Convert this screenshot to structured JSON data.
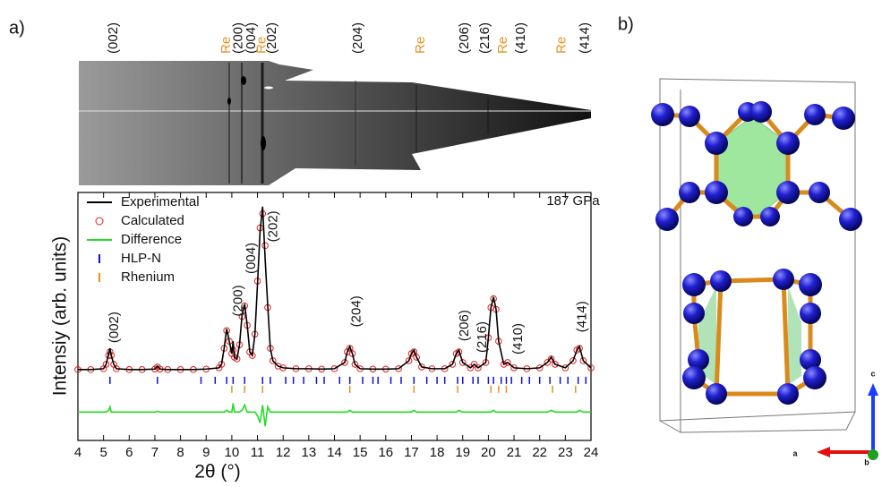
{
  "panel_labels": [
    "a)",
    "b)"
  ],
  "structure_axes": [
    "a",
    "b",
    "c"
  ],
  "chart_data": {
    "type": "line",
    "xlabel": "2θ (°)",
    "ylabel": "Intensiy (arb. units)",
    "xlim": [
      4,
      24
    ],
    "xticks": [
      4,
      5,
      6,
      7,
      8,
      9,
      10,
      11,
      12,
      13,
      14,
      15,
      16,
      17,
      18,
      19,
      20,
      21,
      22,
      23,
      24
    ],
    "ylim": [
      -40,
      100
    ],
    "legend": "upper left",
    "annotations": [
      {
        "text": "187 GPa",
        "x": 23.3,
        "y": 95
      }
    ],
    "peak_labels": [
      {
        "text": "(002)",
        "x": 5.25,
        "y": 13
      },
      {
        "text": "(200)",
        "x": 10.1,
        "y": 28
      },
      {
        "text": "(004)",
        "x": 10.6,
        "y": 52
      },
      {
        "text": "(202)",
        "x": 11.45,
        "y": 70
      },
      {
        "text": "(204)",
        "x": 14.7,
        "y": 22
      },
      {
        "text": "(206)",
        "x": 18.9,
        "y": 14
      },
      {
        "text": "(216)",
        "x": 19.6,
        "y": 7.5
      },
      {
        "text": "(410)",
        "x": 21.0,
        "y": 6.5
      },
      {
        "text": "(414)",
        "x": 23.5,
        "y": 19
      }
    ],
    "image_labels": [
      {
        "text": "(002)",
        "x": 5.22,
        "color": "#111111"
      },
      {
        "text": "Re",
        "x": 9.62,
        "color": "#e8901f"
      },
      {
        "text": "(200)",
        "x": 10.1,
        "color": "#111111"
      },
      {
        "text": "(004)",
        "x": 10.6,
        "color": "#111111"
      },
      {
        "text": "Re",
        "x": 11.0,
        "color": "#e8901f"
      },
      {
        "text": "(202)",
        "x": 11.4,
        "color": "#111111"
      },
      {
        "text": "(204)",
        "x": 14.75,
        "color": "#111111"
      },
      {
        "text": "Re",
        "x": 17.2,
        "color": "#e8901f"
      },
      {
        "text": "(206)",
        "x": 18.9,
        "color": "#111111"
      },
      {
        "text": "(216)",
        "x": 19.7,
        "color": "#111111"
      },
      {
        "text": "Re",
        "x": 20.4,
        "color": "#e8901f"
      },
      {
        "text": "(410)",
        "x": 21.1,
        "color": "#111111"
      },
      {
        "text": "Re",
        "x": 22.7,
        "color": "#e8901f"
      },
      {
        "text": "(414)",
        "x": 23.6,
        "color": "#111111"
      }
    ],
    "x": [
      4,
      4.5,
      5,
      5.1,
      5.2,
      5.25,
      5.3,
      5.4,
      5.5,
      6,
      6.5,
      7,
      7.1,
      7.2,
      7.5,
      8,
      8.5,
      9,
      9.5,
      9.6,
      9.7,
      9.8,
      9.9,
      10,
      10.05,
      10.1,
      10.2,
      10.3,
      10.4,
      10.5,
      10.6,
      10.7,
      10.8,
      10.9,
      11,
      11.1,
      11.2,
      11.3,
      11.4,
      11.5,
      11.6,
      11.8,
      12,
      12.5,
      13,
      13.5,
      14,
      14.4,
      14.5,
      14.6,
      14.7,
      14.8,
      15,
      15.5,
      16,
      16.5,
      16.9,
      17,
      17.1,
      17.2,
      17.4,
      17.8,
      18.3,
      18.6,
      18.75,
      18.85,
      19,
      19.3,
      19.45,
      19.6,
      19.9,
      20,
      20.1,
      20.2,
      20.3,
      20.4,
      20.6,
      20.75,
      21,
      21.5,
      22,
      22.3,
      22.45,
      22.6,
      23,
      23.3,
      23.45,
      23.55,
      23.7,
      24
    ],
    "series": [
      {
        "name": "Experimental",
        "color": "#000000",
        "style": "line",
        "values": [
          0,
          0,
          0.5,
          3,
          9,
          12,
          8,
          3,
          0.5,
          0,
          0,
          0.3,
          2,
          0.3,
          0,
          0,
          0,
          0.3,
          1,
          3,
          12,
          23,
          16,
          9,
          16,
          7,
          6,
          14,
          31,
          37,
          25,
          10,
          8,
          20,
          48,
          78,
          92,
          62,
          36,
          12,
          5,
          2,
          1,
          0.5,
          0.5,
          0.3,
          0.5,
          4,
          10,
          13,
          9,
          3,
          0.5,
          0.3,
          0.3,
          0.5,
          5,
          9,
          11,
          7,
          1.5,
          0.5,
          0.5,
          3,
          9,
          11,
          4,
          1,
          3,
          1,
          4,
          18,
          35,
          41,
          34,
          16,
          3,
          4,
          1,
          0.5,
          1,
          4,
          7,
          3,
          1,
          5,
          11,
          13,
          5,
          1
        ]
      },
      {
        "name": "Calculated",
        "color": "#e02020",
        "style": "circle",
        "values": [
          0,
          0,
          0.5,
          3,
          8,
          10,
          8,
          3,
          0.5,
          0,
          0,
          0.3,
          1.5,
          0.3,
          0,
          0,
          0,
          0.3,
          1,
          3,
          12,
          22,
          16,
          9,
          11,
          7,
          6,
          14,
          30,
          36,
          25,
          10,
          8,
          20,
          50,
          80,
          88,
          70,
          35,
          12,
          5,
          2,
          1,
          0.5,
          0.5,
          0.3,
          0.5,
          4,
          10,
          12,
          9,
          3,
          0.5,
          0.3,
          0.3,
          0.5,
          5,
          9,
          10,
          7,
          1.5,
          0.5,
          0.5,
          3,
          9,
          10,
          4,
          1,
          3,
          1,
          4,
          18,
          35,
          40,
          34,
          16,
          3,
          4,
          1,
          0.5,
          1,
          4,
          6,
          3,
          1,
          5,
          11,
          12,
          5,
          1
        ]
      },
      {
        "name": "Difference",
        "color": "#22dd22",
        "style": "line",
        "values": [
          -24,
          -24,
          -24,
          -24,
          -23,
          -21,
          -24,
          -24,
          -24,
          -24,
          -24,
          -24,
          -23.5,
          -24,
          -24,
          -24,
          -24,
          -24,
          -24,
          -24,
          -24,
          -23,
          -24,
          -24,
          -19,
          -24,
          -24,
          -24,
          -23,
          -20,
          -24,
          -24,
          -24,
          -24,
          -26,
          -30,
          -20,
          -32,
          -21,
          -24,
          -24,
          -24,
          -24,
          -24,
          -24,
          -24,
          -24,
          -24,
          -24,
          -23,
          -24,
          -24,
          -24,
          -24,
          -24,
          -24,
          -24,
          -24,
          -23,
          -24,
          -24,
          -24,
          -24,
          -24,
          -24,
          -23,
          -24,
          -24,
          -24,
          -24,
          -24,
          -24,
          -24,
          -23,
          -24,
          -24,
          -24,
          -24,
          -24,
          -24,
          -24,
          -24,
          -23,
          -24,
          -24,
          -24,
          -24,
          -23,
          -24,
          -24
        ]
      }
    ],
    "reflections": [
      {
        "name": "HLP-N",
        "color": "#1010d0",
        "x": [
          5.25,
          7.1,
          8.8,
          9.35,
          9.8,
          10.05,
          10.5,
          11.2,
          11.5,
          12.1,
          12.4,
          12.8,
          13.3,
          13.6,
          14.2,
          14.6,
          15.1,
          15.5,
          15.7,
          16.2,
          16.6,
          17.1,
          17.6,
          18.0,
          18.3,
          18.8,
          19.0,
          19.4,
          19.6,
          20.0,
          20.2,
          20.5,
          20.7,
          20.9,
          21.3,
          21.6,
          22.0,
          22.4,
          22.8,
          23.1,
          23.5,
          23.8
        ]
      },
      {
        "name": "Rhenium",
        "color": "#e8901f",
        "x": [
          10.0,
          10.5,
          11.2,
          14.6,
          17.1,
          18.8,
          20.1,
          20.4,
          20.7,
          22.5,
          23.4
        ]
      }
    ]
  }
}
